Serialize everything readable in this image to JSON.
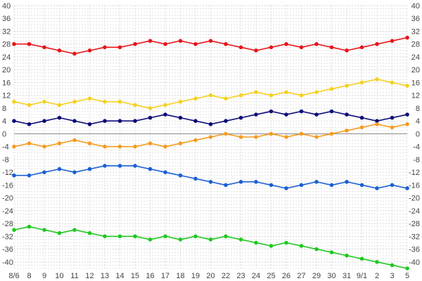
{
  "chart_data": {
    "type": "line",
    "title": "",
    "xlabel": "",
    "ylabel": "",
    "ylim": [
      -42,
      40
    ],
    "y_ticks": [
      40,
      36,
      32,
      28,
      24,
      20,
      16,
      12,
      8,
      4,
      0,
      -4,
      -8,
      -12,
      -16,
      -20,
      -24,
      -28,
      -32,
      -36,
      -40
    ],
    "y_tick_labels": [
      "40",
      "36",
      "32",
      "28",
      "24",
      "20",
      "16",
      "12",
      "8",
      "4",
      "0",
      "-4",
      "-8",
      "-12",
      "-16",
      "-20",
      "-24",
      "-28",
      "-32",
      "-36",
      "-40"
    ],
    "x_tick_labels": [
      "8/6",
      "8",
      "9",
      "10",
      "11",
      "12",
      "13",
      "14",
      "15",
      "16",
      "17",
      "18",
      "19",
      "20",
      "22",
      "23",
      "24",
      "25",
      "26",
      "27",
      "29",
      "30",
      "31",
      "9/1",
      "2",
      "3",
      "5"
    ],
    "grid": true,
    "legend": "none",
    "series": [
      {
        "color": "#e8141a",
        "values": [
          28,
          28,
          27,
          26,
          25,
          26,
          27,
          27,
          28,
          29,
          28,
          29,
          28,
          29,
          28,
          27,
          26,
          27,
          28,
          27,
          28,
          27,
          26,
          27,
          28,
          29,
          30
        ]
      },
      {
        "color": "#f5d01e",
        "values": [
          10,
          9,
          10,
          9,
          10,
          11,
          10,
          10,
          9,
          8,
          9,
          10,
          11,
          12,
          11,
          12,
          13,
          12,
          13,
          12,
          13,
          14,
          15,
          16,
          17,
          16,
          15
        ]
      },
      {
        "color": "#0a0a78",
        "values": [
          4,
          3,
          4,
          5,
          4,
          3,
          4,
          4,
          4,
          5,
          6,
          5,
          4,
          3,
          4,
          5,
          6,
          7,
          6,
          7,
          6,
          7,
          6,
          5,
          4,
          5,
          6
        ]
      },
      {
        "color": "#f59b1e",
        "values": [
          -4,
          -3,
          -4,
          -3,
          -2,
          -3,
          -4,
          -4,
          -4,
          -3,
          -4,
          -3,
          -2,
          -1,
          0,
          -1,
          -1,
          0,
          -1,
          0,
          -1,
          0,
          1,
          2,
          3,
          2,
          3
        ]
      },
      {
        "color": "#1a5fd6",
        "values": [
          -13,
          -13,
          -12,
          -11,
          -12,
          -11,
          -10,
          -10,
          -10,
          -11,
          -12,
          -13,
          -14,
          -15,
          -16,
          -15,
          -15,
          -16,
          -17,
          -16,
          -15,
          -16,
          -15,
          -16,
          -17,
          -16,
          -17
        ]
      },
      {
        "color": "#1ec81e",
        "values": [
          -30,
          -29,
          -30,
          -31,
          -30,
          -31,
          -32,
          -32,
          -32,
          -33,
          -32,
          -33,
          -32,
          -33,
          -32,
          -33,
          -34,
          -35,
          -34,
          -35,
          -36,
          -37,
          -38,
          -39,
          -40,
          -41,
          -42
        ]
      }
    ]
  }
}
